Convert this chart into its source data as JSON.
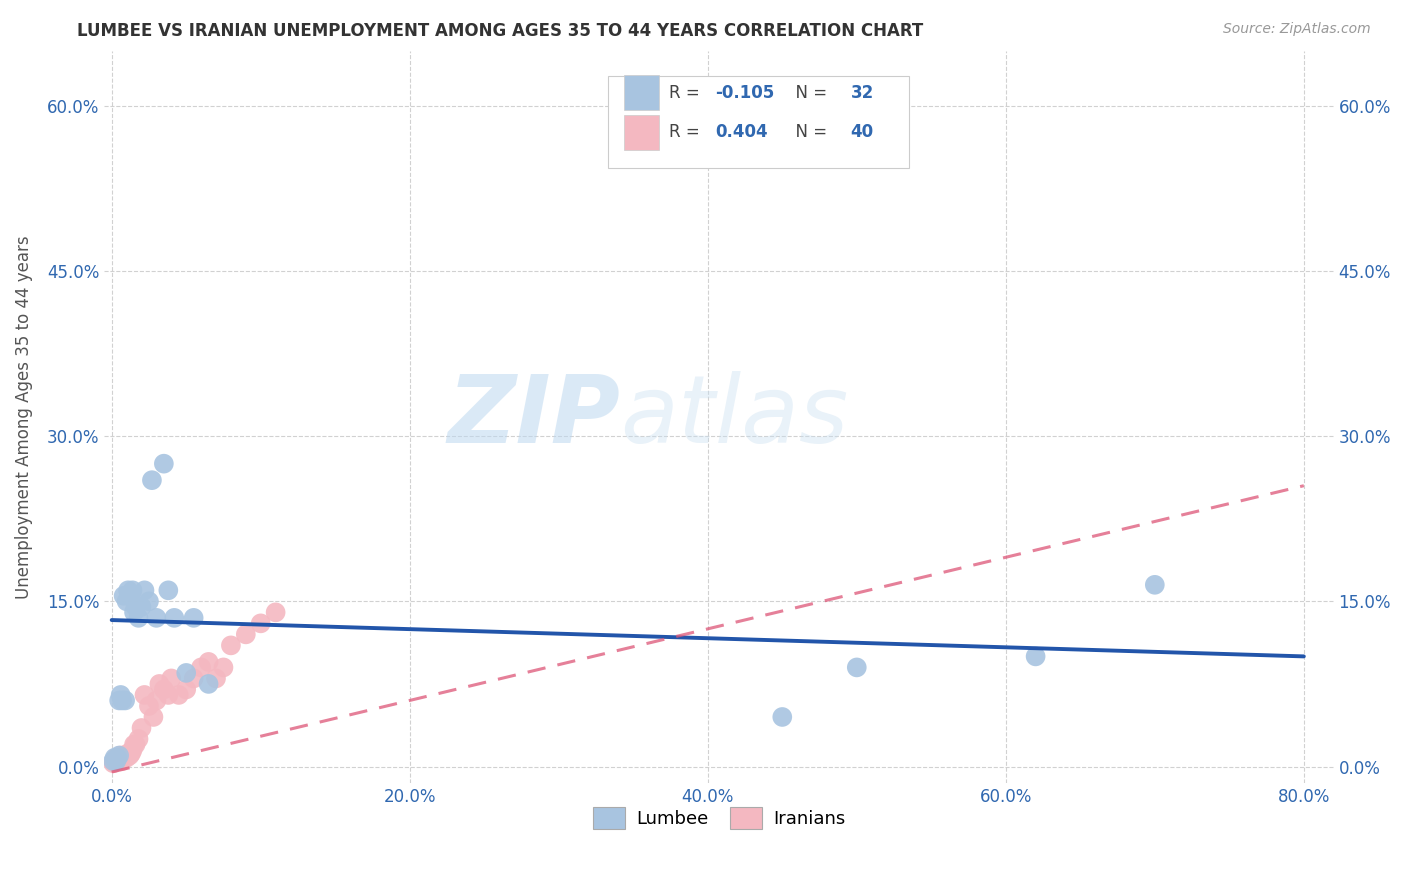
{
  "title": "LUMBEE VS IRANIAN UNEMPLOYMENT AMONG AGES 35 TO 44 YEARS CORRELATION CHART",
  "source": "Source: ZipAtlas.com",
  "ylabel": "Unemployment Among Ages 35 to 44 years",
  "xlabel_ticks": [
    "0.0%",
    "20.0%",
    "40.0%",
    "60.0%",
    "80.0%"
  ],
  "xlabel_vals": [
    0.0,
    0.2,
    0.4,
    0.6,
    0.8
  ],
  "ylabel_ticks": [
    "0.0%",
    "15.0%",
    "30.0%",
    "45.0%",
    "60.0%"
  ],
  "ylabel_vals": [
    0.0,
    0.15,
    0.3,
    0.45,
    0.6
  ],
  "xlim": [
    -0.005,
    0.82
  ],
  "ylim": [
    -0.015,
    0.65
  ],
  "lumbee_color": "#a8c4e0",
  "iranian_color": "#f4b8c1",
  "lumbee_line_color": "#2255aa",
  "iranian_line_color": "#dd5577",
  "watermark_zip": "ZIP",
  "watermark_atlas": "atlas",
  "lumbee_x": [
    0.001,
    0.002,
    0.003,
    0.004,
    0.005,
    0.005,
    0.006,
    0.007,
    0.008,
    0.009,
    0.01,
    0.011,
    0.012,
    0.014,
    0.015,
    0.016,
    0.018,
    0.02,
    0.022,
    0.025,
    0.027,
    0.03,
    0.035,
    0.038,
    0.042,
    0.05,
    0.055,
    0.065,
    0.5,
    0.62,
    0.45,
    0.7
  ],
  "lumbee_y": [
    0.005,
    0.008,
    0.005,
    0.008,
    0.01,
    0.06,
    0.065,
    0.06,
    0.155,
    0.06,
    0.15,
    0.16,
    0.155,
    0.16,
    0.14,
    0.145,
    0.135,
    0.145,
    0.16,
    0.15,
    0.26,
    0.135,
    0.275,
    0.16,
    0.135,
    0.085,
    0.135,
    0.075,
    0.09,
    0.1,
    0.045,
    0.165
  ],
  "iranian_x": [
    0.001,
    0.002,
    0.002,
    0.003,
    0.003,
    0.004,
    0.005,
    0.005,
    0.006,
    0.007,
    0.008,
    0.009,
    0.01,
    0.011,
    0.012,
    0.013,
    0.014,
    0.015,
    0.016,
    0.018,
    0.02,
    0.022,
    0.025,
    0.028,
    0.03,
    0.032,
    0.035,
    0.038,
    0.04,
    0.045,
    0.05,
    0.055,
    0.06,
    0.065,
    0.07,
    0.075,
    0.08,
    0.09,
    0.1,
    0.11
  ],
  "iranian_y": [
    0.003,
    0.004,
    0.006,
    0.005,
    0.008,
    0.005,
    0.006,
    0.008,
    0.01,
    0.005,
    0.008,
    0.01,
    0.008,
    0.012,
    0.01,
    0.012,
    0.015,
    0.02,
    0.02,
    0.025,
    0.035,
    0.065,
    0.055,
    0.045,
    0.06,
    0.075,
    0.07,
    0.065,
    0.08,
    0.065,
    0.07,
    0.08,
    0.09,
    0.095,
    0.08,
    0.09,
    0.11,
    0.12,
    0.13,
    0.14
  ],
  "lumbee_line_x0": 0.0,
  "lumbee_line_y0": 0.133,
  "lumbee_line_x1": 0.8,
  "lumbee_line_y1": 0.1,
  "iranian_line_x0": 0.0,
  "iranian_line_y0": -0.005,
  "iranian_line_x1": 0.8,
  "iranian_line_y1": 0.255
}
